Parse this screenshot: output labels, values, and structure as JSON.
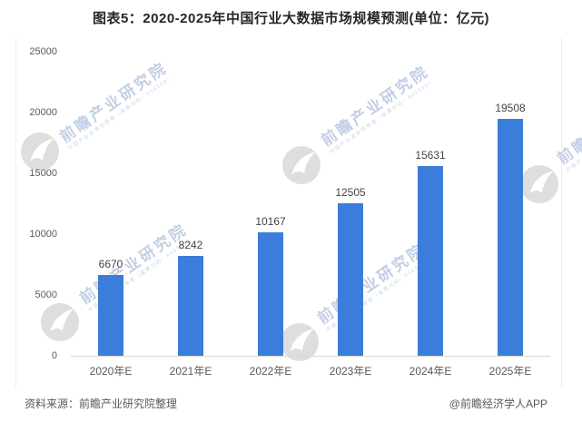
{
  "title": "图表5：2020-2025年中国行业大数据市场规模预测(单位：亿元)",
  "chart_data": {
    "type": "bar",
    "title": "2020-2025年中国行业大数据市场规模预测",
    "unit": "亿元",
    "categories": [
      "2020年E",
      "2021年E",
      "2022年E",
      "2023年E",
      "2024年E",
      "2025年E"
    ],
    "values": [
      6670,
      8242,
      10167,
      12505,
      15631,
      19508
    ],
    "yticks": [
      "25000",
      "20000",
      "15000",
      "10000",
      "5000",
      "0"
    ],
    "ylim": [
      0,
      25000
    ],
    "grid": false,
    "legend": false,
    "bar_color": "#3b7dda",
    "value_label_color": "#444444",
    "axis_label_color": "#595959"
  },
  "watermark": {
    "text": "前瞻产业研究院",
    "subtext": "中国产业咨询领导者（股票代码：839599）",
    "text_color": "#c2cfe4",
    "logo_color": "#d9d9d9"
  },
  "footer": {
    "source": "资料来源：前瞻产业研究院整理",
    "credit": "@前瞻经济学人APP"
  }
}
